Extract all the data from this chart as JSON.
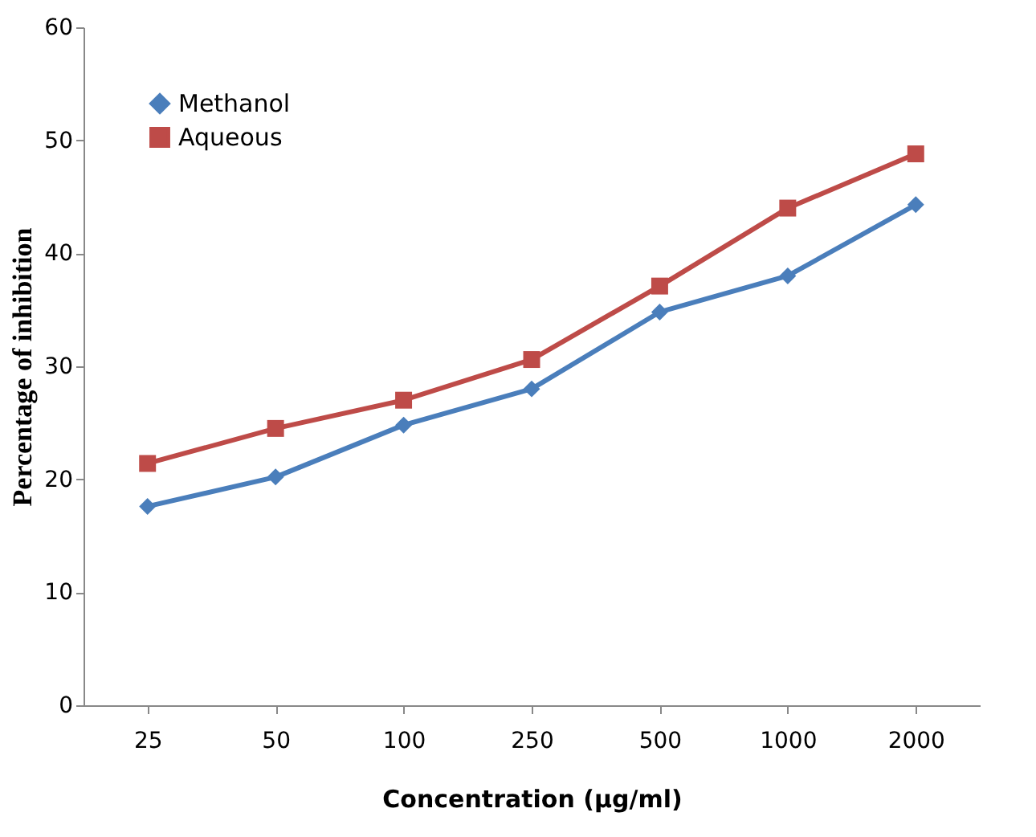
{
  "chart_data": {
    "type": "line",
    "xlabel": "Concentration (µg/ml)",
    "ylabel": "Percentage of inhibition",
    "categories": [
      "25",
      "50",
      "100",
      "250",
      "500",
      "1000",
      "2000"
    ],
    "series": [
      {
        "name": "Methanol",
        "color": "#4a7ebb",
        "marker": "diamond",
        "values": [
          17.6,
          20.2,
          24.8,
          28.0,
          34.8,
          38.0,
          44.3
        ]
      },
      {
        "name": "Aqueous",
        "color": "#be4b48",
        "marker": "square",
        "values": [
          21.4,
          24.5,
          27.0,
          30.6,
          37.1,
          44.0,
          48.8
        ]
      }
    ],
    "ylim": [
      0,
      60
    ],
    "yticks": [
      0,
      10,
      20,
      30,
      40,
      50,
      60
    ],
    "grid": false,
    "legend": "top left",
    "line_style": "solid"
  }
}
